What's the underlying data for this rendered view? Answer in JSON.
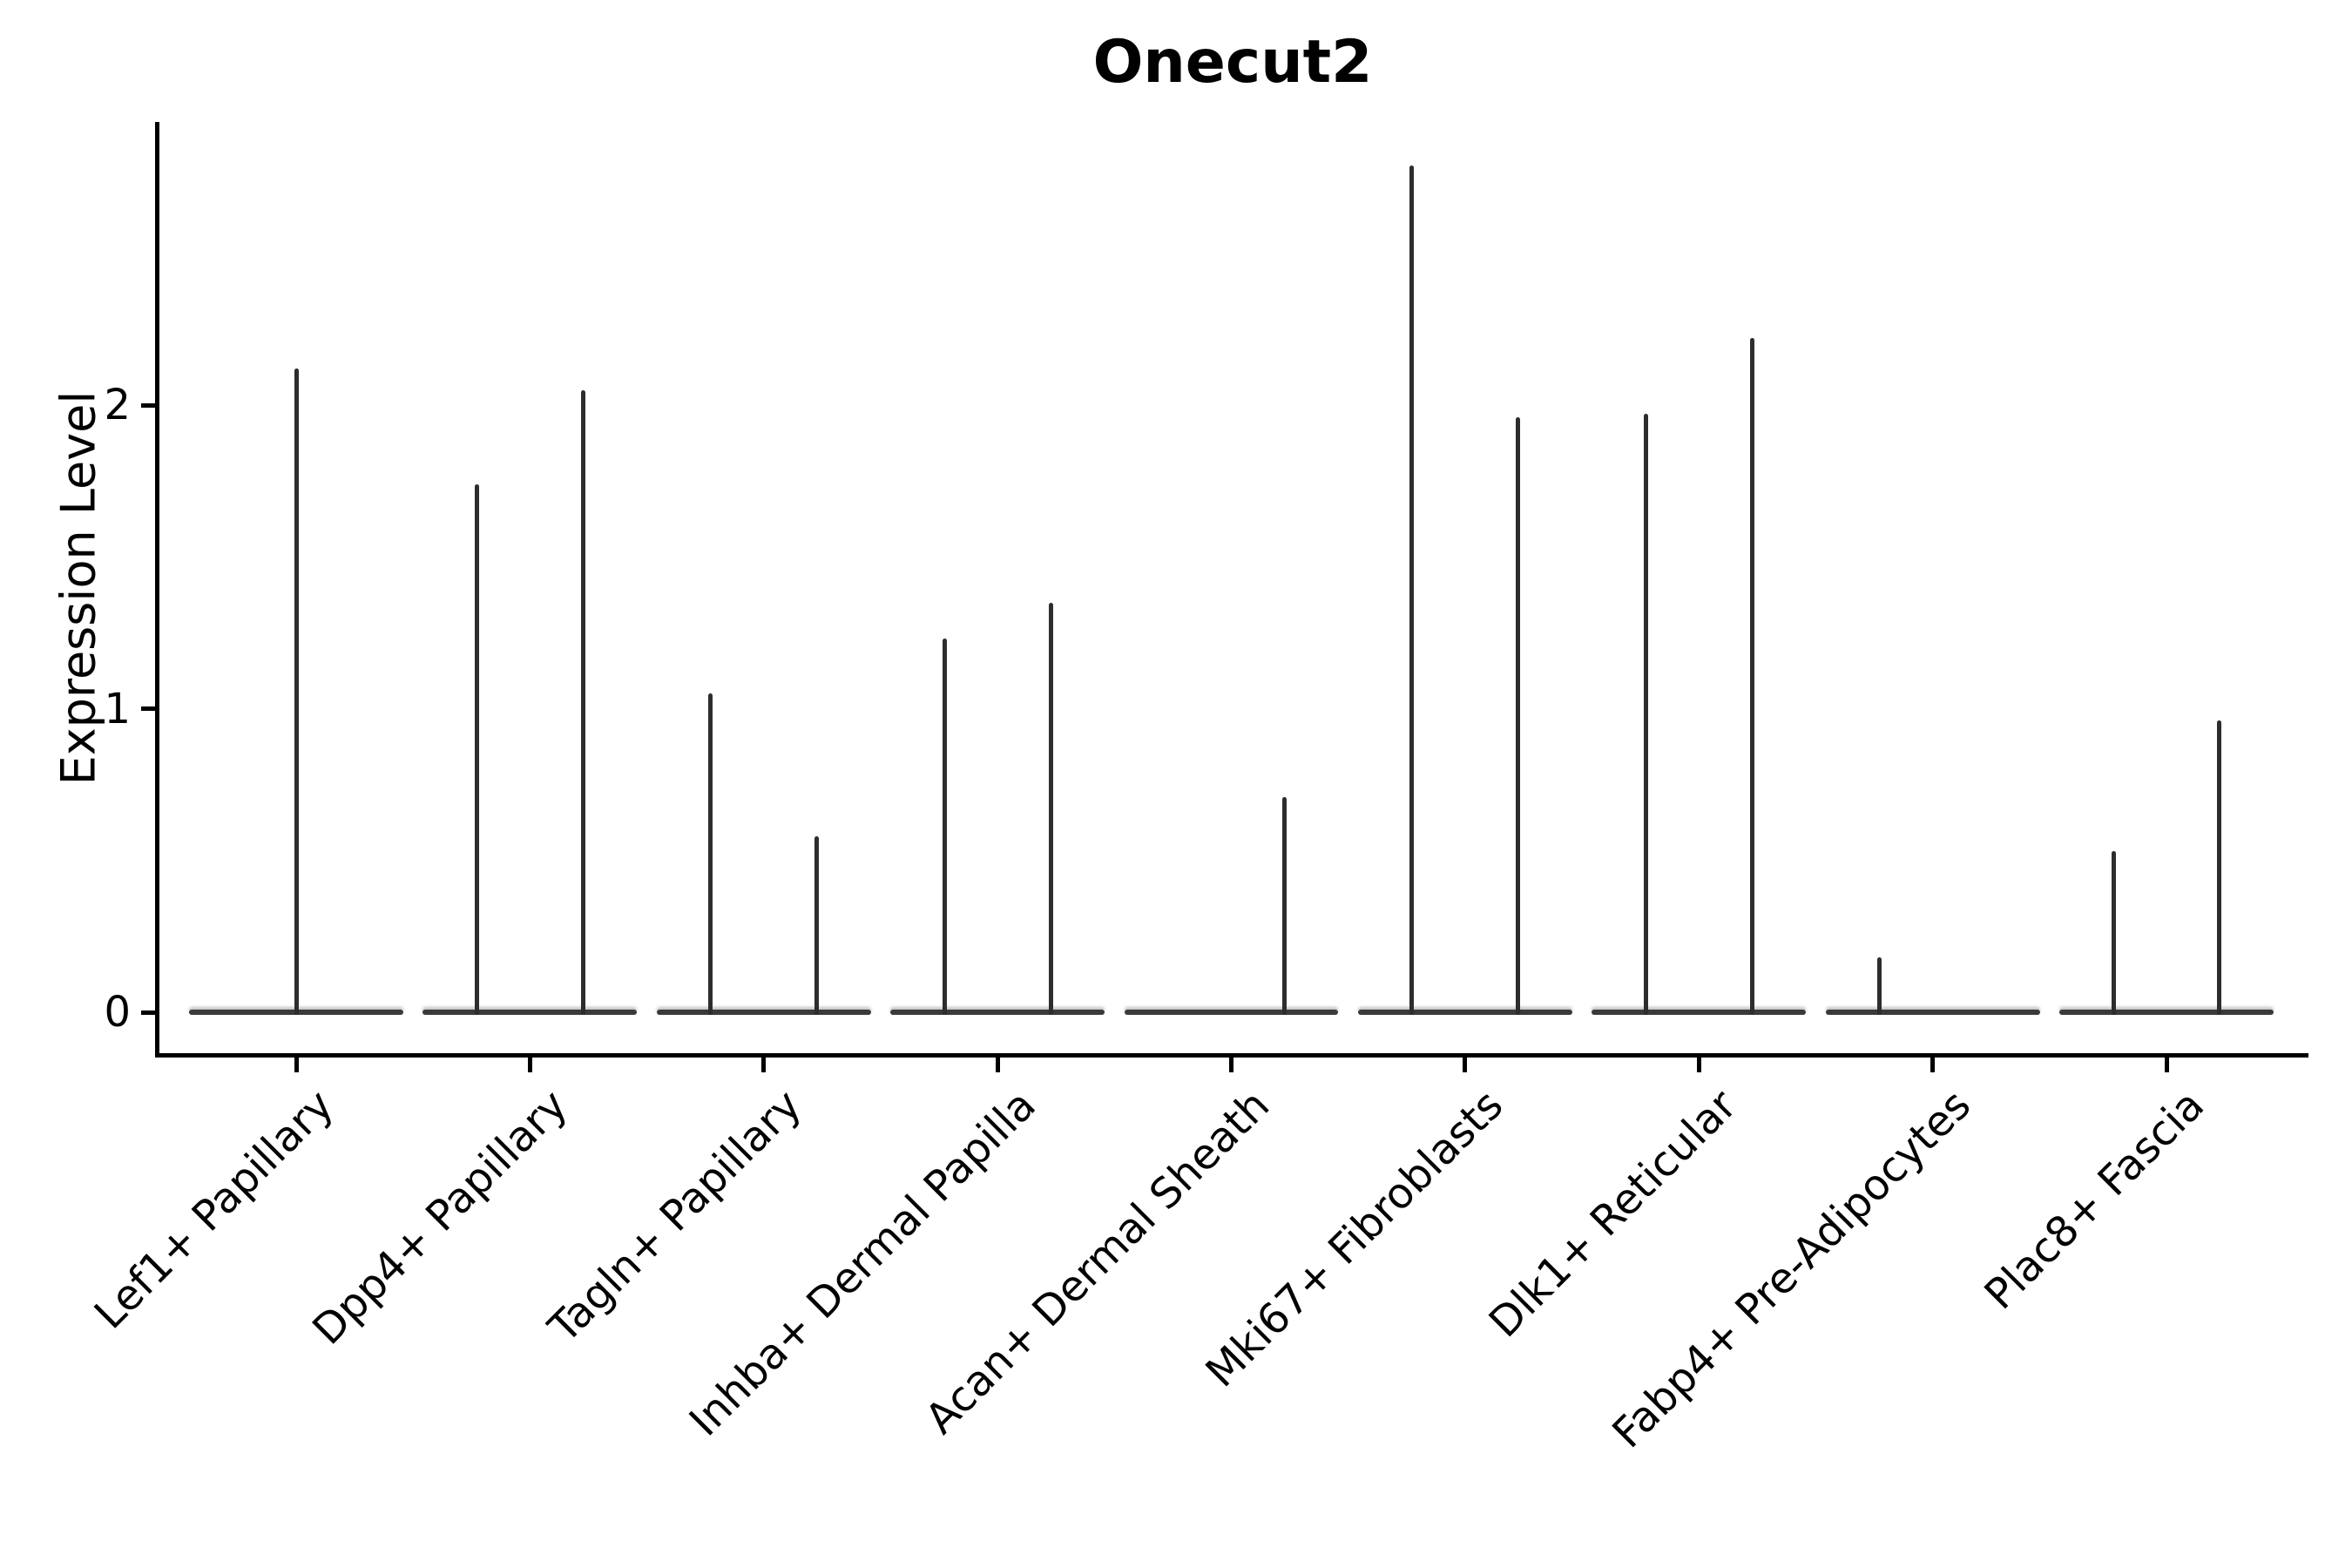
{
  "title": "Onecut2",
  "y_axis": {
    "label": "Expression Level",
    "tick_labels": [
      "0",
      "1",
      "2"
    ]
  },
  "colors": {
    "axis": "#000000",
    "violin": "#2d2d2d",
    "baseline": "#3a3a3a",
    "background": "#ffffff",
    "text": "#000000"
  },
  "chart_data": {
    "type": "violin",
    "title": "Onecut2",
    "xlabel": "",
    "ylabel": "Expression Level",
    "ylim": [
      -0.14,
      2.93
    ],
    "yticks": [
      0,
      1,
      2
    ],
    "grid": false,
    "legend": false,
    "description": "Violin plot of Onecut2 expression; each cluster is a flat near-zero distribution with thin vertical spikes at maximum expression values",
    "baseline_value": 0,
    "baseline_halfwidth_frac": 0.458,
    "categories": [
      "Lef1+ Papillary",
      "Dpp4+ Papillary",
      "Tagln+ Papillary",
      "Inhba+ Dermal Papilla",
      "Acan+ Dermal Sheath",
      "Mki67+ Fibroblasts",
      "Dlk1+ Reticular",
      "Fabp4+ Pre-Adipocytes",
      "Plac8+ Fascia"
    ],
    "violins": [
      {
        "category": "Lef1+ Papillary",
        "spikes": [
          {
            "offset_frac": 0.0,
            "peak": 2.12
          }
        ]
      },
      {
        "category": "Dpp4+ Papillary",
        "spikes": [
          {
            "offset_frac": -0.227,
            "peak": 1.74
          },
          {
            "offset_frac": 0.227,
            "peak": 2.05
          }
        ]
      },
      {
        "category": "Tagln+ Papillary",
        "spikes": [
          {
            "offset_frac": -0.227,
            "peak": 1.05
          },
          {
            "offset_frac": 0.227,
            "peak": 0.58
          }
        ]
      },
      {
        "category": "Inhba+ Dermal Papilla",
        "spikes": [
          {
            "offset_frac": -0.227,
            "peak": 1.23
          },
          {
            "offset_frac": 0.227,
            "peak": 1.35
          }
        ]
      },
      {
        "category": "Acan+ Dermal Sheath",
        "spikes": [
          {
            "offset_frac": 0.227,
            "peak": 0.71
          }
        ]
      },
      {
        "category": "Mki67+ Fibroblasts",
        "spikes": [
          {
            "offset_frac": -0.227,
            "peak": 2.79
          },
          {
            "offset_frac": 0.227,
            "peak": 1.96
          }
        ]
      },
      {
        "category": "Dlk1+ Reticular",
        "spikes": [
          {
            "offset_frac": -0.227,
            "peak": 1.97
          },
          {
            "offset_frac": 0.227,
            "peak": 2.22
          }
        ]
      },
      {
        "category": "Fabp4+ Pre-Adipocytes",
        "spikes": [
          {
            "offset_frac": -0.227,
            "peak": 0.18
          }
        ]
      },
      {
        "category": "Plac8+ Fascia",
        "spikes": [
          {
            "offset_frac": -0.227,
            "peak": 0.53
          },
          {
            "offset_frac": 0.227,
            "peak": 0.96
          }
        ]
      }
    ]
  }
}
